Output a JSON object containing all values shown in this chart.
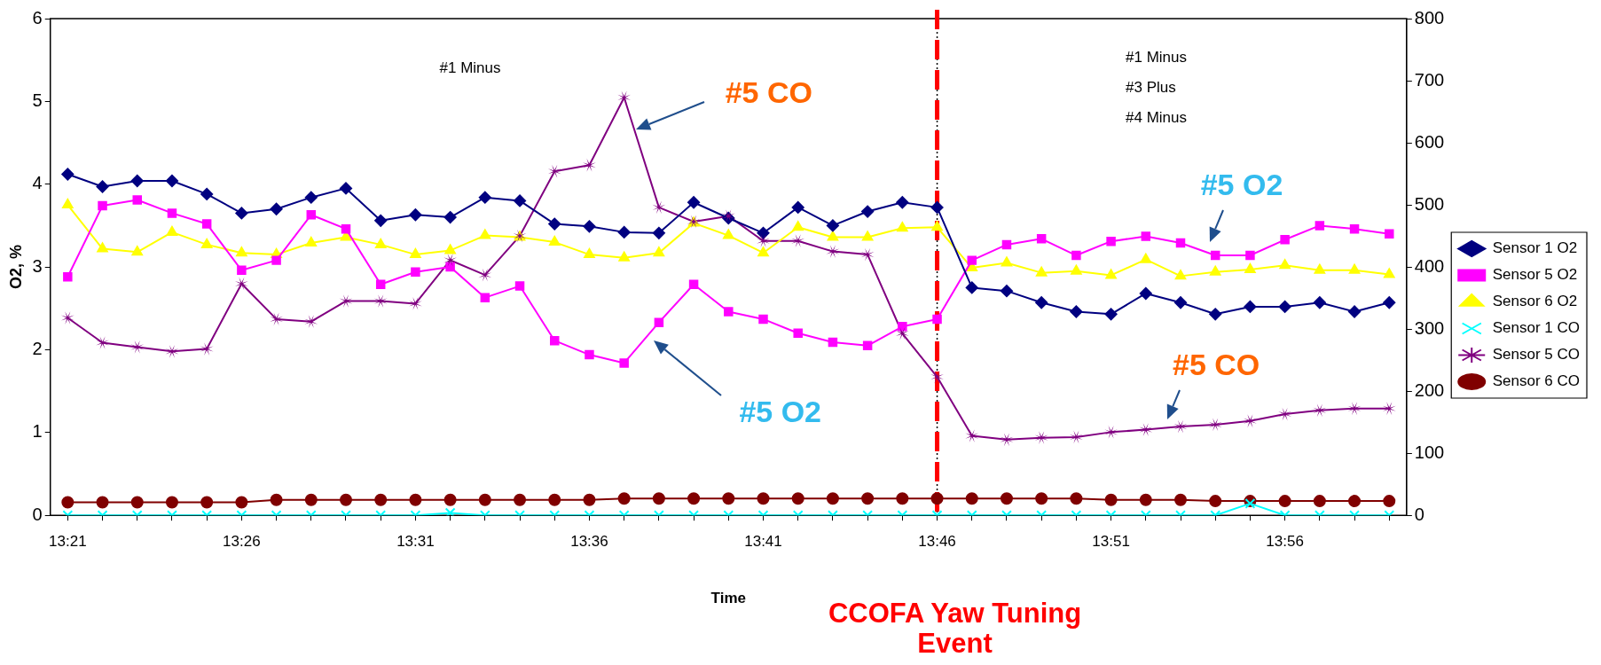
{
  "chart_data": {
    "type": "line",
    "xlabel": "Time",
    "ylabel": "O2, %",
    "categories": [
      "13:21",
      null,
      null,
      null,
      null,
      "13:26",
      null,
      null,
      null,
      null,
      "13:31",
      null,
      null,
      null,
      null,
      "13:36",
      null,
      null,
      null,
      null,
      "13:41",
      null,
      null,
      null,
      null,
      "13:46",
      null,
      null,
      null,
      null,
      "13:51",
      null,
      null,
      null,
      null,
      "13:56",
      null,
      null,
      null
    ],
    "series": [
      {
        "name": "Sensor 1 O2",
        "color": "#000080",
        "marker": "diamond",
        "values": [
          4.12,
          3.97,
          4.04,
          4.04,
          3.88,
          3.65,
          3.7,
          3.84,
          3.95,
          3.56,
          3.63,
          3.6,
          3.84,
          3.8,
          3.52,
          3.49,
          3.42,
          3.41,
          3.78,
          3.59,
          3.41,
          3.72,
          3.5,
          3.67,
          3.78,
          3.72,
          2.75,
          2.71,
          2.57,
          2.46,
          2.43,
          2.68,
          2.57,
          2.43,
          2.52,
          2.52,
          2.57,
          2.46,
          2.57
        ]
      },
      {
        "name": "Sensor 5 O2",
        "color": "#ff00ff",
        "marker": "square",
        "values": [
          2.88,
          3.74,
          3.81,
          3.65,
          3.52,
          2.96,
          3.08,
          3.63,
          3.46,
          2.79,
          2.94,
          3.0,
          2.63,
          2.77,
          2.11,
          1.94,
          1.84,
          2.33,
          2.79,
          2.46,
          2.37,
          2.2,
          2.09,
          2.05,
          2.28,
          2.37,
          3.08,
          3.27,
          3.34,
          3.14,
          3.31,
          3.37,
          3.29,
          3.14,
          3.14,
          3.33,
          3.5,
          3.46,
          3.4
        ]
      },
      {
        "name": "Sensor 6 O2",
        "color": "#ffff00",
        "marker": "triangle",
        "values": [
          3.75,
          3.22,
          3.18,
          3.42,
          3.27,
          3.17,
          3.15,
          3.29,
          3.36,
          3.27,
          3.15,
          3.2,
          3.38,
          3.36,
          3.3,
          3.15,
          3.11,
          3.17,
          3.53,
          3.38,
          3.17,
          3.48,
          3.36,
          3.36,
          3.47,
          3.48,
          2.99,
          3.05,
          2.93,
          2.95,
          2.9,
          3.09,
          2.89,
          2.94,
          2.97,
          3.02,
          2.96,
          2.96,
          2.91
        ]
      },
      {
        "name": "Sensor 1 CO",
        "color": "#00ffff",
        "marker": "cross",
        "axis": "y2",
        "values": [
          0,
          0,
          0,
          0,
          0,
          0,
          0,
          0,
          0,
          0,
          0,
          4,
          0,
          0,
          0,
          0,
          0,
          0,
          0,
          0,
          0,
          0,
          0,
          0,
          0,
          0,
          0,
          0,
          0,
          0,
          0,
          0,
          0,
          0,
          19,
          0,
          0,
          0,
          0
        ]
      },
      {
        "name": "Sensor 5 CO",
        "color": "#800080",
        "marker": "star",
        "axis": "y2",
        "values": [
          318,
          278,
          271,
          264,
          268,
          373,
          316,
          312,
          345,
          345,
          341,
          411,
          387,
          450,
          554,
          564,
          673,
          496,
          473,
          482,
          442,
          442,
          425,
          420,
          293,
          223,
          128,
          122,
          125,
          126,
          134,
          138,
          143,
          146,
          152,
          163,
          169,
          172,
          172
        ]
      },
      {
        "name": "Sensor 6 CO",
        "color": "#800000",
        "marker": "circle",
        "axis": "y2",
        "values": [
          21,
          21,
          21,
          21,
          21,
          21,
          25,
          25,
          25,
          25,
          25,
          25,
          25,
          25,
          25,
          25,
          27,
          27,
          27,
          27,
          27,
          27,
          27,
          27,
          27,
          27,
          27,
          27,
          27,
          27,
          25,
          25,
          25,
          23,
          23,
          23,
          23,
          23,
          23
        ]
      }
    ],
    "ylim": [
      0,
      6
    ],
    "yticks": [
      0,
      1,
      2,
      3,
      4,
      5,
      6
    ],
    "y2lim": [
      0,
      800
    ],
    "y2ticks": [
      0,
      100,
      200,
      300,
      400,
      500,
      600,
      700,
      800
    ],
    "grid": false,
    "legend": "right",
    "line_style": "solid",
    "ref_lines": [
      {
        "axis": "x",
        "value": "13:46",
        "label": null,
        "color": "#000000",
        "line_style": "dotted"
      },
      {
        "axis": "x",
        "value": "13:46",
        "label": "CCOFA Yaw Tuning Event",
        "color": "#ff0000",
        "line_style": "dashed"
      }
    ],
    "annotations": [
      "#1 Minus",
      "#1 Minus\n#3 Plus\n#4 Minus",
      "#5 CO",
      "#5 O2",
      "#5 O2",
      "#5 CO"
    ]
  }
}
